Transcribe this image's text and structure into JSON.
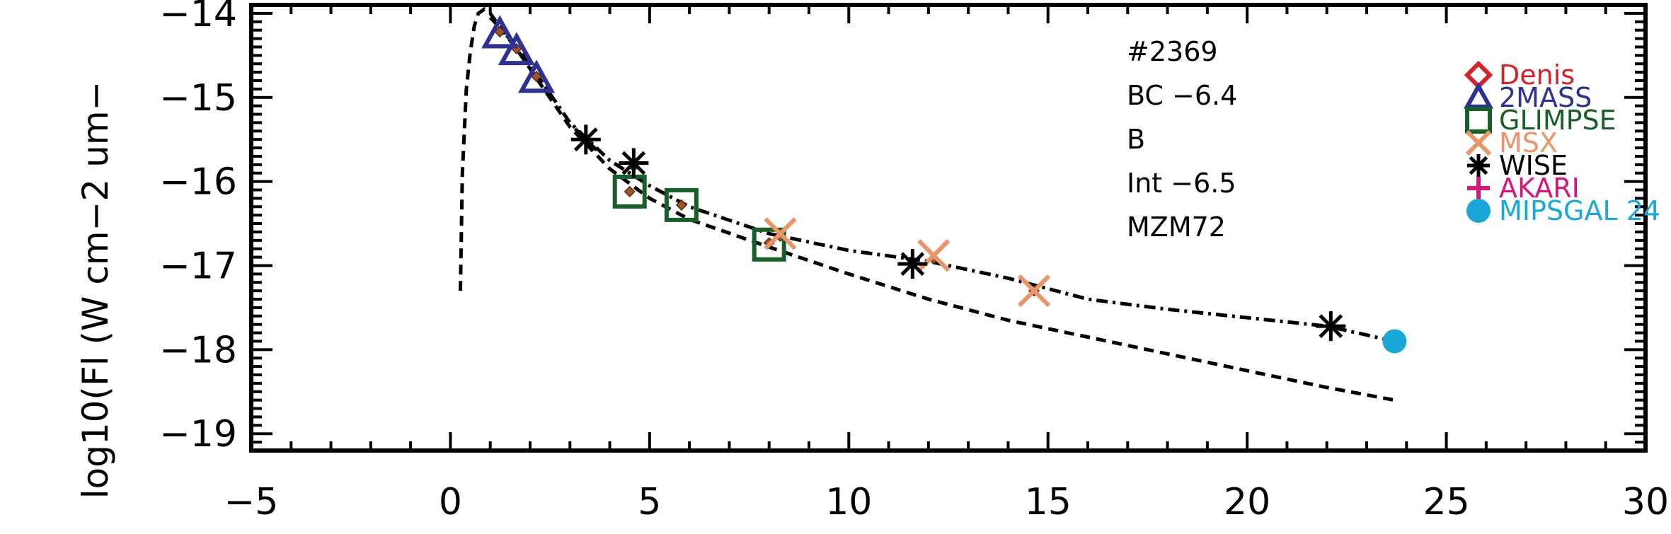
{
  "chart_data": {
    "type": "scatter",
    "title": "",
    "xlabel": "",
    "ylabel": "log10(Fl (W cm−2 um−",
    "xlim": [
      -5,
      30
    ],
    "ylim": [
      -19.2,
      -13.9
    ],
    "x_ticks": [
      -5,
      0,
      5,
      10,
      15,
      20,
      25,
      30
    ],
    "x_tick_labels": [
      "−5",
      "0",
      "5",
      "10",
      "15",
      "20",
      "25",
      "30"
    ],
    "y_ticks": [
      -19,
      -18,
      -17,
      -16,
      -15,
      -14
    ],
    "y_tick_labels": [
      "−19",
      "−18",
      "−17",
      "−16",
      "−15",
      "−14"
    ],
    "grid": false,
    "annotations": [
      "#2369",
      "BC −6.4",
      "B",
      "Int −6.5",
      "MZM72"
    ],
    "legend": {
      "placement": "top-right",
      "entries": [
        {
          "label": "Denis",
          "marker": "diamond",
          "color": "#d2232a"
        },
        {
          "label": "2MASS",
          "marker": "triangle",
          "color": "#2e3192"
        },
        {
          "label": "GLIMPSE",
          "marker": "square",
          "color": "#1a5e2a"
        },
        {
          "label": "MSX",
          "marker": "x",
          "color": "#e8956a"
        },
        {
          "label": "WISE",
          "marker": "asterisk",
          "color": "#000000"
        },
        {
          "label": "AKARI",
          "marker": "plus",
          "color": "#d6177a"
        },
        {
          "label": "MIPSGAL 24",
          "marker": "circle",
          "color": "#1ba8d8"
        }
      ]
    },
    "series": [
      {
        "name": "2MASS",
        "marker": "triangle",
        "color": "#2e3192",
        "x": [
          1.24,
          1.66,
          2.16
        ],
        "y": [
          -14.25,
          -14.45,
          -14.78
        ]
      },
      {
        "name": "GLIMPSE",
        "marker": "square",
        "color": "#1a5e2a",
        "x": [
          4.5,
          5.8,
          8.0
        ],
        "y": [
          -16.12,
          -16.28,
          -16.75
        ]
      },
      {
        "name": "MSX",
        "marker": "x",
        "color": "#e8956a",
        "x": [
          8.28,
          12.13,
          14.65
        ],
        "y": [
          -16.62,
          -16.88,
          -17.3
        ]
      },
      {
        "name": "WISE",
        "marker": "asterisk",
        "color": "#000000",
        "x": [
          3.4,
          4.6,
          11.6,
          22.1
        ],
        "y": [
          -15.5,
          -15.78,
          -16.98,
          -17.72
        ]
      },
      {
        "name": "MIPSGAL 24",
        "marker": "circle",
        "color": "#1ba8d8",
        "x": [
          23.7
        ],
        "y": [
          -17.9
        ]
      }
    ],
    "fit_points": {
      "color": "#a0522d",
      "x": [
        1.24,
        1.66,
        2.16,
        3.4,
        4.5,
        4.6,
        5.8,
        8.0,
        8.28,
        11.6,
        12.13,
        14.65,
        22.1,
        23.7
      ],
      "y": [
        -14.22,
        -14.42,
        -14.75,
        -15.5,
        -16.12,
        -15.82,
        -16.28,
        -16.73,
        -16.65,
        -16.98,
        -16.92,
        -17.3,
        -17.72,
        -17.92
      ]
    },
    "curves": [
      {
        "style": "dashed",
        "x": [
          0.25,
          0.3,
          0.4,
          0.5,
          0.6,
          0.7,
          0.85,
          1.0,
          1.3,
          1.7,
          2.2,
          3.0,
          4.0,
          5.0,
          6.0,
          8.0,
          10.0,
          12.0,
          14.0,
          16.0,
          18.0,
          20.0,
          22.0,
          23.7
        ],
        "y": [
          -17.3,
          -15.9,
          -14.9,
          -14.45,
          -14.15,
          -14.0,
          -13.95,
          -14.0,
          -14.2,
          -14.45,
          -14.8,
          -15.35,
          -15.85,
          -16.2,
          -16.45,
          -16.78,
          -17.1,
          -17.4,
          -17.65,
          -17.85,
          -18.05,
          -18.25,
          -18.45,
          -18.6
        ]
      },
      {
        "style": "dashdot",
        "x": [
          1.0,
          1.3,
          1.7,
          2.2,
          3.0,
          4.0,
          5.0,
          6.0,
          8.0,
          10.0,
          12.0,
          14.0,
          16.0,
          18.0,
          20.0,
          22.0,
          23.7
        ],
        "y": [
          -14.05,
          -14.2,
          -14.42,
          -14.75,
          -15.3,
          -15.75,
          -16.05,
          -16.3,
          -16.62,
          -16.82,
          -16.95,
          -17.15,
          -17.4,
          -17.52,
          -17.62,
          -17.72,
          -17.9
        ]
      }
    ]
  }
}
